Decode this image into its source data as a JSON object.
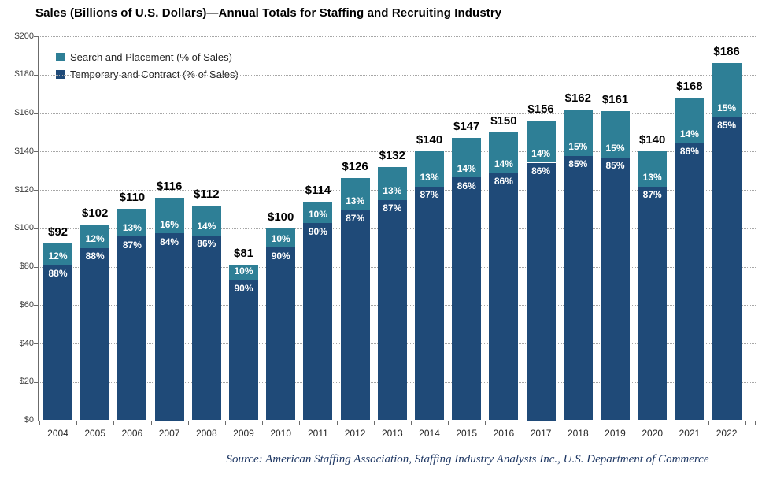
{
  "title": "Sales (Billions of U.S. Dollars)—Annual Totals for Staffing and Recruiting Industry",
  "source": "Source: American Staffing Association, Staffing Industry Analysts Inc., U.S. Department of Commerce",
  "legend": {
    "items": [
      {
        "label": "Search and Placement (% of Sales)",
        "color": "#2E7F96"
      },
      {
        "label": "Temporary and Contract (% of Sales)",
        "color": "#1F4A78"
      }
    ]
  },
  "y_axis": {
    "tick_labels": [
      "$0",
      "$20",
      "$40",
      "$60",
      "$80",
      "$100",
      "$120",
      "$140",
      "$160",
      "$180",
      "$200"
    ],
    "min": 0,
    "max": 200,
    "step": 20
  },
  "chart_data": {
    "type": "bar",
    "stacked": true,
    "title": "Sales (Billions of U.S. Dollars)—Annual Totals for Staffing and Recruiting Industry",
    "xlabel": "",
    "ylabel": "Sales (Billions of U.S. Dollars)",
    "ylim": [
      0,
      200
    ],
    "grid": "horizontal-dotted",
    "legend_position": "top-left-inside",
    "categories": [
      "2004",
      "2005",
      "2006",
      "2007",
      "2008",
      "2009",
      "2010",
      "2011",
      "2012",
      "2013",
      "2014",
      "2015",
      "2016",
      "2017",
      "2018",
      "2019",
      "2020",
      "2021",
      "2022"
    ],
    "totals": [
      92,
      102,
      110,
      116,
      112,
      81,
      100,
      114,
      126,
      132,
      140,
      147,
      150,
      156,
      162,
      161,
      140,
      168,
      186
    ],
    "total_labels": [
      "$92",
      "$102",
      "$110",
      "$116",
      "$112",
      "$81",
      "$100",
      "$114",
      "$126",
      "$132",
      "$140",
      "$147",
      "$150",
      "$156",
      "$162",
      "$161",
      "$140",
      "$168",
      "$186"
    ],
    "series": [
      {
        "name": "Search and Placement (% of Sales)",
        "color": "#2E7F96",
        "stack_position": "top",
        "pct_of_total": [
          12,
          12,
          13,
          16,
          14,
          10,
          10,
          10,
          13,
          13,
          13,
          14,
          14,
          14,
          15,
          15,
          13,
          14,
          15
        ],
        "pct_labels": [
          "12%",
          "12%",
          "13%",
          "16%",
          "14%",
          "10%",
          "10%",
          "10%",
          "13%",
          "13%",
          "13%",
          "14%",
          "14%",
          "14%",
          "15%",
          "15%",
          "13%",
          "14%",
          "15%"
        ]
      },
      {
        "name": "Temporary and Contract (% of Sales)",
        "color": "#1F4A78",
        "stack_position": "bottom",
        "pct_of_total": [
          88,
          88,
          87,
          84,
          86,
          90,
          90,
          90,
          87,
          87,
          87,
          86,
          86,
          86,
          85,
          85,
          87,
          86,
          85
        ],
        "pct_labels": [
          "88%",
          "88%",
          "87%",
          "84%",
          "86%",
          "90%",
          "90%",
          "90%",
          "87%",
          "87%",
          "87%",
          "86%",
          "86%",
          "86%",
          "85%",
          "85%",
          "87%",
          "86%",
          "85%"
        ]
      }
    ]
  }
}
